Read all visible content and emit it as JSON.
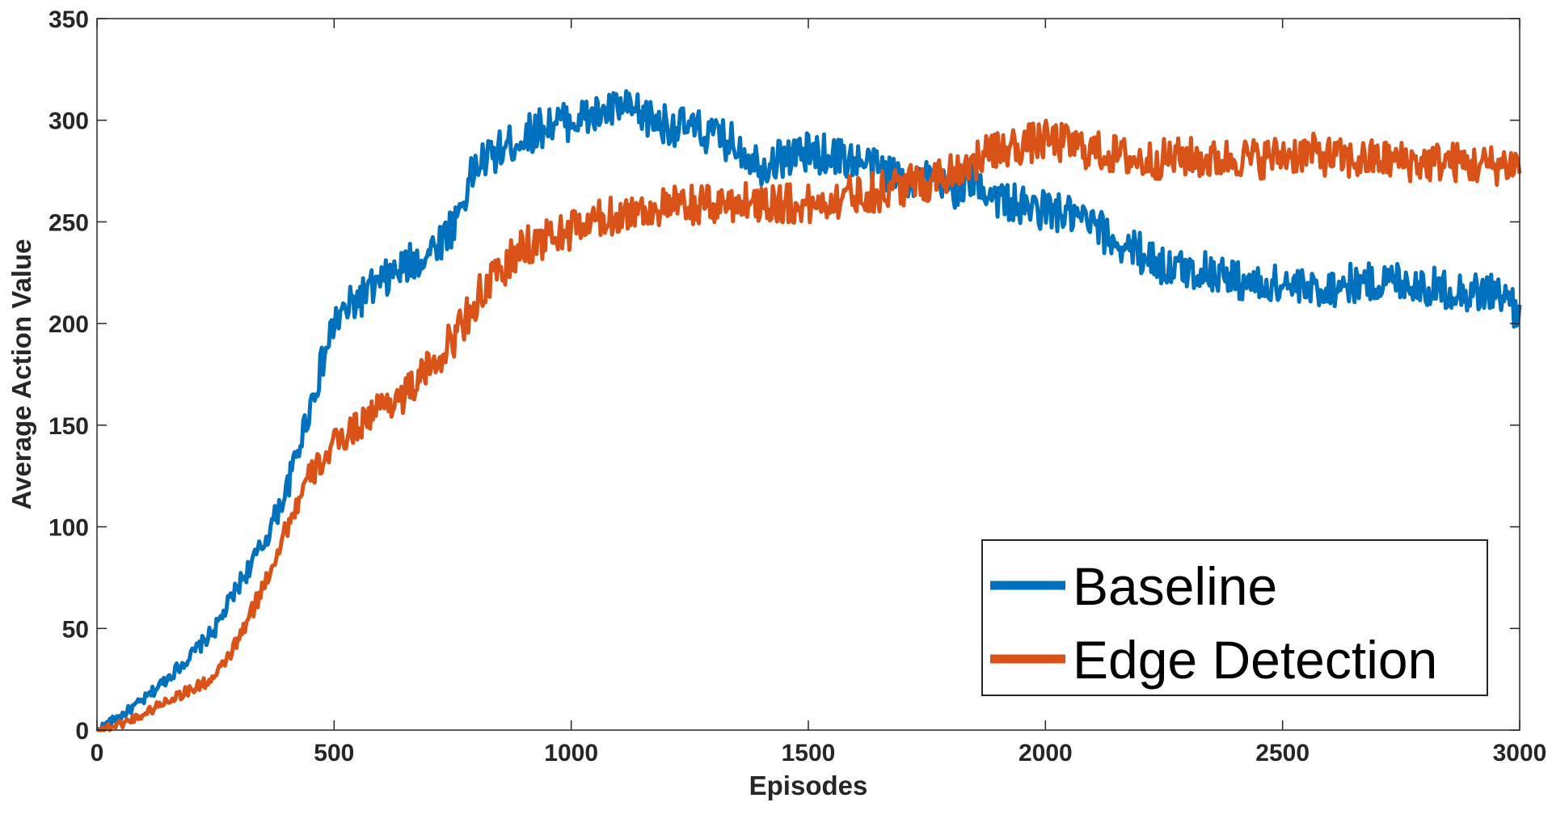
{
  "chart_data": {
    "type": "line",
    "title": "",
    "xlabel": "Episodes",
    "ylabel": "Average Action Value",
    "xlim": [
      0,
      3000
    ],
    "ylim": [
      0,
      350
    ],
    "xticks": [
      0,
      500,
      1000,
      1500,
      2000,
      2500,
      3000
    ],
    "yticks": [
      0,
      50,
      100,
      150,
      200,
      250,
      300,
      350
    ],
    "grid": false,
    "legend_position": "bottom-right",
    "series": [
      {
        "name": "Baseline",
        "color": "#0072BD",
        "x": [
          0,
          50,
          100,
          150,
          200,
          250,
          300,
          350,
          400,
          450,
          500,
          550,
          600,
          650,
          700,
          750,
          800,
          850,
          900,
          950,
          1000,
          1050,
          1100,
          1150,
          1200,
          1250,
          1300,
          1350,
          1400,
          1450,
          1500,
          1550,
          1600,
          1650,
          1700,
          1750,
          1800,
          1850,
          1900,
          1950,
          2000,
          2050,
          2100,
          2150,
          2200,
          2250,
          2300,
          2350,
          2400,
          2450,
          2500,
          2550,
          2600,
          2650,
          2700,
          2750,
          2800,
          2850,
          2900,
          2950,
          3000
        ],
        "values": [
          0,
          7,
          15,
          26,
          37,
          50,
          72,
          91,
          118,
          160,
          200,
          212,
          220,
          228,
          235,
          248,
          278,
          285,
          292,
          298,
          300,
          302,
          306,
          302,
          298,
          296,
          292,
          288,
          278,
          282,
          284,
          283,
          280,
          276,
          272,
          270,
          266,
          270,
          262,
          257,
          256,
          253,
          248,
          240,
          235,
          228,
          226,
          226,
          222,
          218,
          220,
          216,
          218,
          220,
          220,
          222,
          218,
          217,
          215,
          216,
          205
        ]
      },
      {
        "name": "Edge Detection",
        "color": "#D95319",
        "x": [
          0,
          50,
          100,
          150,
          200,
          250,
          300,
          350,
          400,
          450,
          500,
          550,
          600,
          650,
          700,
          750,
          800,
          850,
          900,
          950,
          1000,
          1050,
          1100,
          1150,
          1200,
          1250,
          1300,
          1350,
          1400,
          1450,
          1500,
          1550,
          1600,
          1650,
          1700,
          1750,
          1800,
          1850,
          1900,
          1950,
          2000,
          2050,
          2100,
          2150,
          2200,
          2250,
          2300,
          2350,
          2400,
          2450,
          2500,
          2550,
          2600,
          2650,
          2700,
          2750,
          2800,
          2850,
          2900,
          2950,
          3000
        ],
        "values": [
          0,
          3,
          8,
          15,
          20,
          26,
          45,
          70,
          100,
          125,
          140,
          150,
          160,
          165,
          178,
          192,
          212,
          225,
          238,
          242,
          246,
          250,
          254,
          256,
          257,
          258,
          258,
          260,
          260,
          259,
          258,
          261,
          264,
          265,
          268,
          270,
          275,
          280,
          285,
          288,
          290,
          288,
          285,
          283,
          280,
          281,
          282,
          280,
          282,
          281,
          283,
          284,
          282,
          280,
          281,
          280,
          279,
          280,
          278,
          278,
          279
        ]
      }
    ]
  }
}
